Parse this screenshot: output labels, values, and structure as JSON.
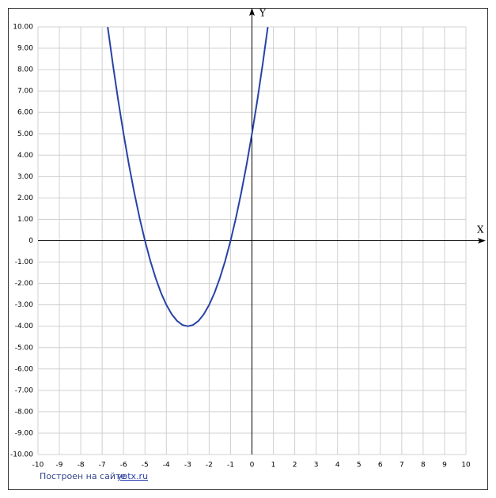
{
  "chart_data": {
    "type": "line",
    "x": [
      -6.74,
      -6.5,
      -6.25,
      -6,
      -5.75,
      -5.5,
      -5.25,
      -5,
      -4.75,
      -4.5,
      -4.25,
      -4,
      -3.75,
      -3.5,
      -3.25,
      -3,
      -2.75,
      -2.5,
      -2.25,
      -2,
      -1.75,
      -1.5,
      -1.25,
      -1,
      -0.75,
      -0.5,
      -0.25,
      0,
      0.25,
      0.5,
      0.74
    ],
    "values": [
      9.99,
      8.25,
      6.56,
      5,
      3.56,
      2.25,
      1.06,
      0,
      -0.94,
      -1.75,
      -2.44,
      -3,
      -3.44,
      -3.75,
      -3.94,
      -4,
      -3.94,
      -3.75,
      -3.44,
      -3,
      -2.44,
      -1.75,
      -0.94,
      0,
      1.06,
      2.25,
      3.56,
      5,
      6.56,
      8.25,
      9.99
    ],
    "color": "#2743a6",
    "xlim": [
      -10,
      10
    ],
    "ylim": [
      -10,
      10
    ],
    "xticks": [
      -10,
      -9,
      -8,
      -7,
      -6,
      -5,
      -4,
      -3,
      -2,
      -1,
      0,
      1,
      2,
      3,
      4,
      5,
      6,
      7,
      8,
      9,
      10
    ],
    "yticks": [
      {
        "value": 10,
        "label": "10.00"
      },
      {
        "value": 9,
        "label": "9.00"
      },
      {
        "value": 8,
        "label": "8.00"
      },
      {
        "value": 7,
        "label": "7.00"
      },
      {
        "value": 6,
        "label": "6.00"
      },
      {
        "value": 5,
        "label": "5.00"
      },
      {
        "value": 4,
        "label": "4.00"
      },
      {
        "value": 3,
        "label": "3.00"
      },
      {
        "value": 2,
        "label": "2.00"
      },
      {
        "value": 1,
        "label": "1.00"
      },
      0,
      {
        "value": -1,
        "label": "-1.00"
      },
      {
        "value": -2,
        "label": "-2.00"
      },
      {
        "value": -3,
        "label": "-3.00"
      },
      {
        "value": -4,
        "label": "-4.00"
      },
      {
        "value": -5,
        "label": "-5.00"
      },
      {
        "value": -6,
        "label": "-6.00"
      },
      {
        "value": -7,
        "label": "-7.00"
      },
      {
        "value": -8,
        "label": "-8.00"
      },
      {
        "value": -9,
        "label": "-9.00"
      },
      {
        "value": -10,
        "label": "-10.00"
      }
    ],
    "grid": true,
    "xlabel": "X",
    "ylabel": "Y",
    "footer_text": "Построен на сайте",
    "footer_link": "yotx.ru"
  }
}
